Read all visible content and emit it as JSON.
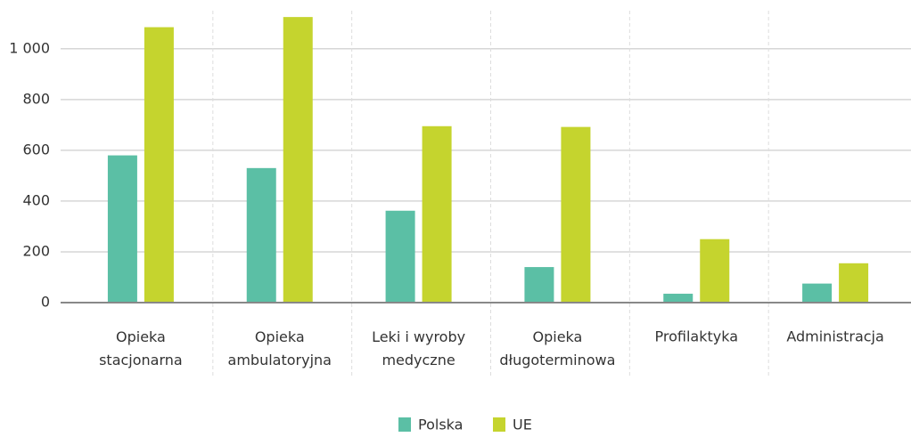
{
  "chart_data": {
    "type": "bar",
    "categories": [
      "Opieka\nstacjonarna",
      "Opieka\nambulatoryjna",
      "Leki i wyroby\nmedyczne",
      "Opieka\ndługoterminowa",
      "Profilaktyka",
      "Administracja"
    ],
    "series": [
      {
        "name": "Polska",
        "color": "#5bbfa5",
        "values": [
          580,
          530,
          362,
          140,
          35,
          75
        ]
      },
      {
        "name": "UE",
        "color": "#c5d42e",
        "values": [
          1085,
          1125,
          695,
          692,
          250,
          155
        ]
      }
    ],
    "ylim": [
      0,
      1150
    ],
    "yticks": [
      0,
      200,
      400,
      600,
      800,
      {
        "value": 1000,
        "label": "1 000"
      }
    ],
    "grid": true,
    "legend": "bottom"
  }
}
